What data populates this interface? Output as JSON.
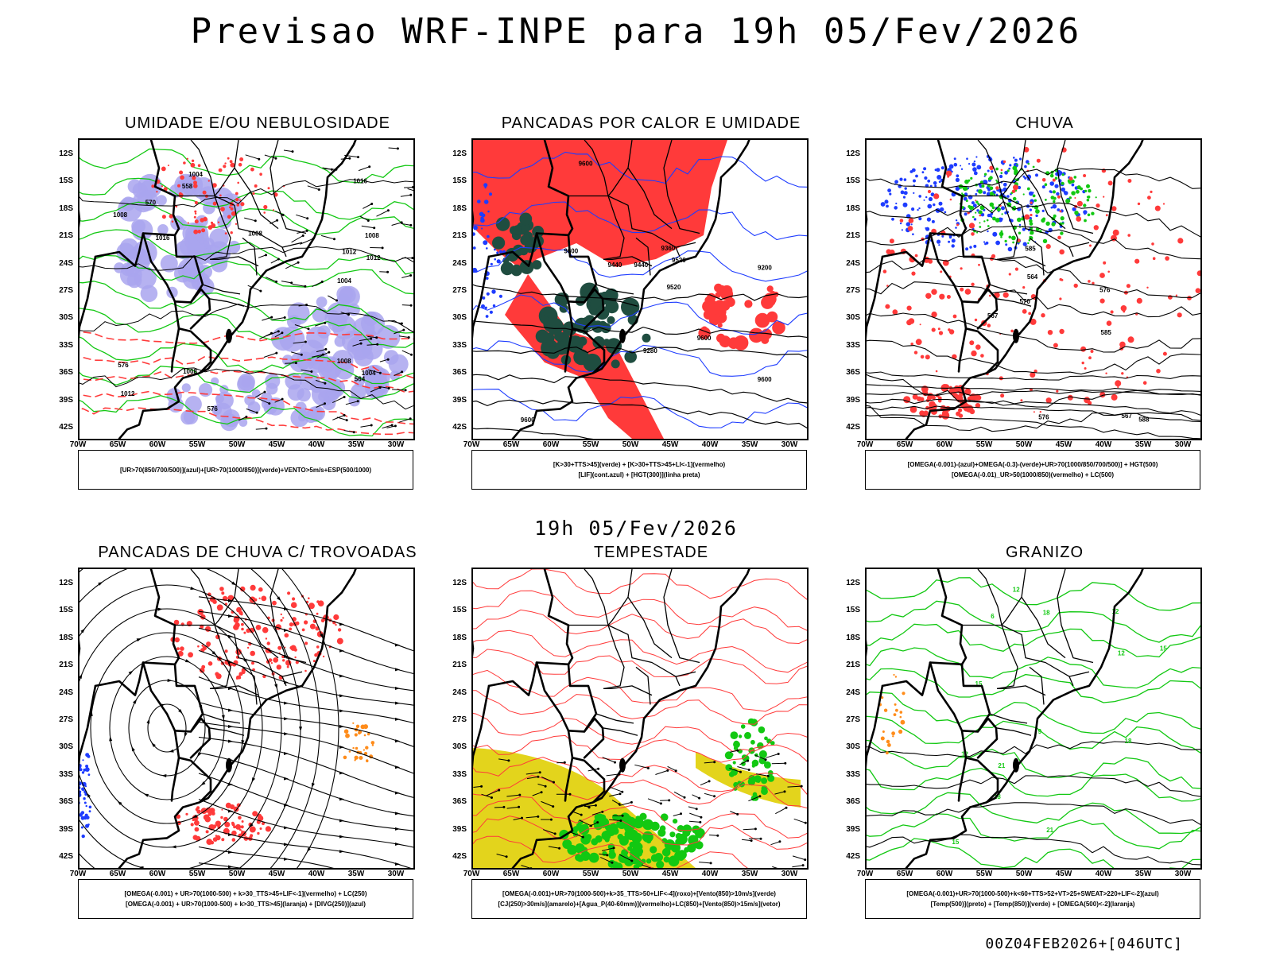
{
  "header": {
    "title": "Previsao WRF-INPE  para 19h 05/Fev/2026"
  },
  "middle": {
    "title": "19h 05/Fev/2026"
  },
  "footer": {
    "run": "00Z04FEB2026+[046UTC]"
  },
  "axes": {
    "lat_labels": [
      "12S",
      "15S",
      "18S",
      "21S",
      "24S",
      "27S",
      "30S",
      "33S",
      "36S",
      "39S",
      "42S"
    ],
    "lon_labels": [
      "70W",
      "65W",
      "60W",
      "55W",
      "50W",
      "45W",
      "40W",
      "35W",
      "30W"
    ]
  },
  "colors": {
    "blue": "#1e3cff",
    "green": "#12c812",
    "red": "#ff3a3a",
    "purple": "#a9a4ee",
    "dark_green": "#1f4d40",
    "yellow": "#e3d41c",
    "orange": "#ff8c1a"
  },
  "panels": [
    {
      "id": "umidade",
      "title": "UMIDADE E/OU NEBULOSIDADE",
      "legend": [
        "[UR>70(850/700/500)](azul)+[UR>70(1000/850)](verde)+VENTO>5m/s+ESP(500/1000)"
      ],
      "contour_labels": [
        "1008",
        "1008",
        "1004",
        "1008",
        "1012",
        "1004",
        "1012",
        "1008",
        "1016",
        "1016",
        "1012",
        "1008",
        "1004",
        "576",
        "576",
        "570",
        "564",
        "558"
      ]
    },
    {
      "id": "pancadas_calor",
      "title": "PANCADAS POR CALOR E UMIDADE",
      "legend": [
        "[K>30+TTS>45](verde) + [K>30+TTS>45+LI<-1](vermelho)",
        "[LIF](cont.azul) + [HGT(300)](linha preta)"
      ],
      "contour_labels": [
        "9600",
        "9600",
        "9600",
        "9600",
        "9600",
        "9520",
        "9520",
        "9440",
        "9440",
        "9280",
        "9360",
        "9200"
      ]
    },
    {
      "id": "chuva",
      "title": "CHUVA",
      "legend": [
        "[OMEGA(-0.001)-(azul)+OMEGA(-0.3)-(verde)+UR>70(1000/850/700/500)] + HGT(500)",
        "[OMEGA(-0.01)_UR>50(1000/850)(vermelho) + LC(500)"
      ],
      "contour_labels": [
        "585",
        "588",
        "585",
        "576",
        "576",
        "570",
        "567",
        "564",
        "567"
      ]
    },
    {
      "id": "trovoadas",
      "title": "PANCADAS DE CHUVA C/ TROVOADAS",
      "legend": [
        "[OMEGA(-0.001) + UR>70(1000-500) + k>30_TTS>45+LIF<-1](vermelho) + LC(250)",
        "[OMEGA(-0.001) + UR>70(1000-500) + k>30_TTS>45](laranja) + [DIVG(250)](azul)"
      ],
      "contour_labels": []
    },
    {
      "id": "tempestade",
      "title": "TEMPESTADE",
      "legend": [
        "[OMEGA(-0.001)+UR>70(1000-500)+k>35_TTS>50+LIF<-4](roxo)+[Vento(850)>10m/s](verde)",
        "[CJ(250)>30m/s](amarelo)+[Agua_P(40-60mm)](vermelho)+LC(850)+[Vento(850)>15m/s](vetor)"
      ],
      "contour_labels": []
    },
    {
      "id": "granizo",
      "title": "GRANIZO",
      "legend": [
        "[OMEGA(-0.001)+UR>70(1000-500)+k<60+TTS>52+VT>25+SWEAT>220+LIF<-2](azul)",
        "[Temp(500)](preto) + [Temp(850)](verde) + [OMEGA(500)<-2](laranja)"
      ],
      "contour_labels": [
        "21",
        "18",
        "15",
        "12",
        "12",
        "15",
        "18",
        "21",
        "12",
        "15",
        "18",
        "6",
        "9",
        "12"
      ]
    }
  ]
}
